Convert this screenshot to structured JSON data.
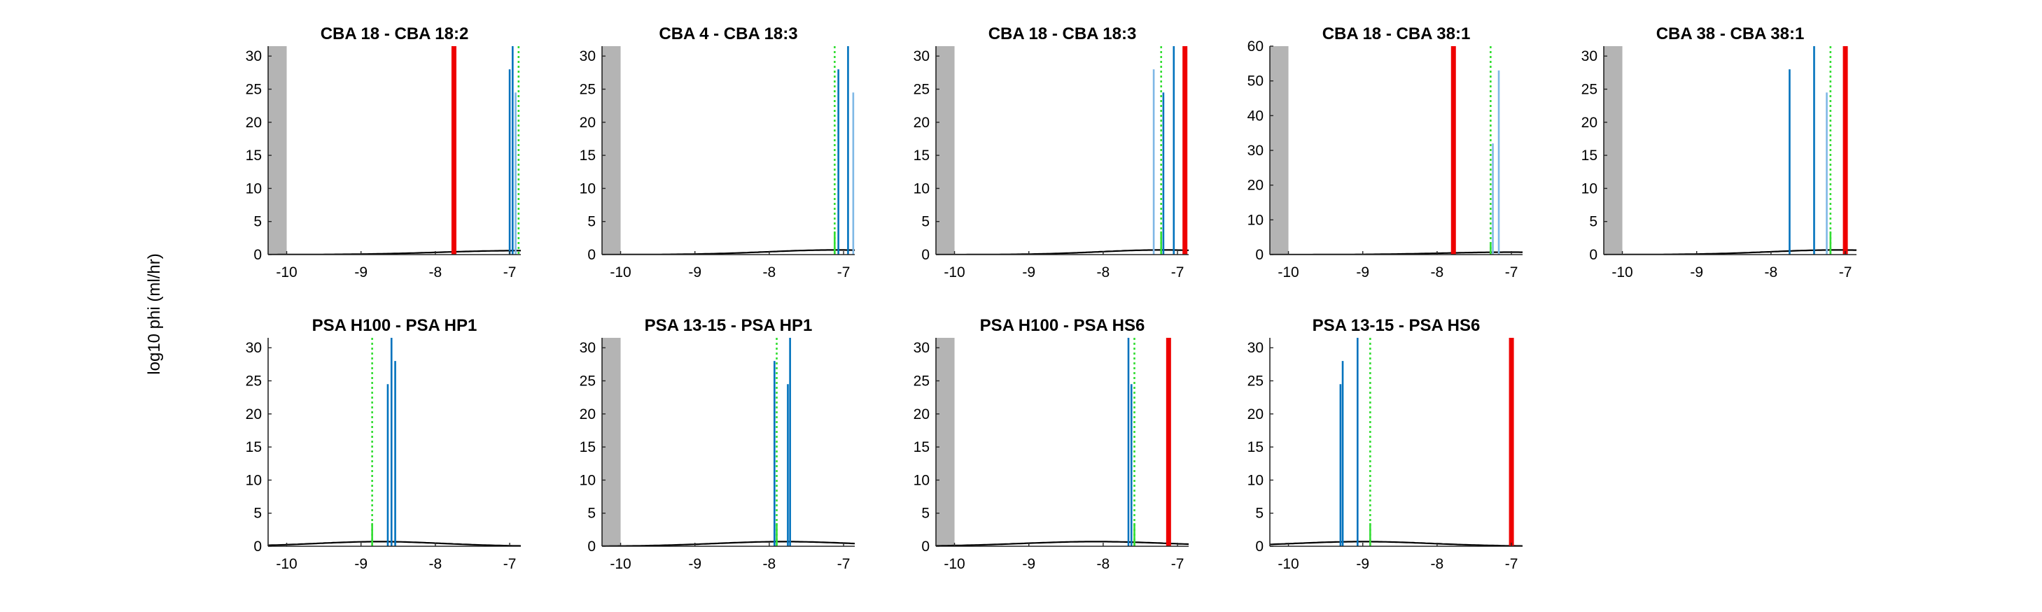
{
  "figure": {
    "ylabel": "log10 phi (ml/hr)"
  },
  "chart_data": [
    {
      "type": "bar",
      "title": "CBA 18 - CBA 18:2",
      "xlim": [
        -10.25,
        -6.85
      ],
      "ylim": [
        0,
        31.5
      ],
      "xticks": [
        -10,
        -9,
        -8,
        -7
      ],
      "xtick_labels": [
        "-10",
        "-9",
        "-8",
        "-7"
      ],
      "yticks": [
        0,
        5,
        10,
        15,
        20,
        25,
        30
      ],
      "ytick_labels": [
        "0",
        "5",
        "10",
        "15",
        "20",
        "25",
        "30"
      ],
      "shaded_region": [
        -10.25,
        -10.0
      ],
      "red_lines": [
        -7.75
      ],
      "green_dotted_lines": [
        -6.88
      ],
      "green_bars": [],
      "dark_blue_bars": [
        {
          "x": -7.0,
          "h": 28
        },
        {
          "x": -6.96,
          "h": 31.5
        }
      ],
      "light_blue_bars": [
        {
          "x": -6.92,
          "h": 24.5
        }
      ],
      "curve": {
        "peak_x": -6.85,
        "peak_y": 0.6,
        "width": 1.5
      }
    },
    {
      "type": "bar",
      "title": "CBA 4 - CBA 18:3",
      "xlim": [
        -10.25,
        -6.85
      ],
      "ylim": [
        0,
        31.5
      ],
      "xticks": [
        -10,
        -9,
        -8,
        -7
      ],
      "xtick_labels": [
        "-10",
        "-9",
        "-8",
        "-7"
      ],
      "yticks": [
        0,
        5,
        10,
        15,
        20,
        25,
        30
      ],
      "ytick_labels": [
        "0",
        "5",
        "10",
        "15",
        "20",
        "25",
        "30"
      ],
      "shaded_region": [
        -10.25,
        -10.0
      ],
      "red_lines": [],
      "green_dotted_lines": [
        -7.12
      ],
      "green_bars": [
        {
          "x": -7.12,
          "h": 3.5
        }
      ],
      "dark_blue_bars": [
        {
          "x": -7.07,
          "h": 28
        },
        {
          "x": -6.94,
          "h": 31.5
        }
      ],
      "light_blue_bars": [
        {
          "x": -6.87,
          "h": 24.5
        }
      ],
      "curve": {
        "peak_x": -7.1,
        "peak_y": 0.7,
        "width": 1.3
      }
    },
    {
      "type": "bar",
      "title": "CBA 18 - CBA 18:3",
      "xlim": [
        -10.25,
        -6.85
      ],
      "ylim": [
        0,
        31.5
      ],
      "xticks": [
        -10,
        -9,
        -8,
        -7
      ],
      "xtick_labels": [
        "-10",
        "-9",
        "-8",
        "-7"
      ],
      "yticks": [
        0,
        5,
        10,
        15,
        20,
        25,
        30
      ],
      "ytick_labels": [
        "0",
        "5",
        "10",
        "15",
        "20",
        "25",
        "30"
      ],
      "shaded_region": [
        -10.25,
        -10.0
      ],
      "red_lines": [
        -6.9
      ],
      "green_dotted_lines": [
        -7.22
      ],
      "green_bars": [
        {
          "x": -7.22,
          "h": 3.5
        }
      ],
      "dark_blue_bars": [
        {
          "x": -7.19,
          "h": 24.5
        },
        {
          "x": -7.05,
          "h": 31.5
        }
      ],
      "light_blue_bars": [
        {
          "x": -7.32,
          "h": 28
        }
      ],
      "curve": {
        "peak_x": -7.2,
        "peak_y": 0.7,
        "width": 1.2
      }
    },
    {
      "type": "bar",
      "title": "CBA 18 - CBA 38:1",
      "xlim": [
        -10.25,
        -6.85
      ],
      "ylim": [
        0,
        60
      ],
      "xticks": [
        -10,
        -9,
        -8,
        -7
      ],
      "xtick_labels": [
        "-10",
        "-9",
        "-8",
        "-7"
      ],
      "yticks": [
        0,
        10,
        20,
        30,
        40,
        50,
        60
      ],
      "ytick_labels": [
        "0",
        "10",
        "20",
        "30",
        "40",
        "50",
        "60"
      ],
      "shaded_region": [
        -10.25,
        -10.0
      ],
      "red_lines": [
        -7.78
      ],
      "green_dotted_lines": [
        -7.28
      ],
      "green_bars": [
        {
          "x": -7.28,
          "h": 3.5
        }
      ],
      "dark_blue_bars": [],
      "light_blue_bars": [
        {
          "x": -7.25,
          "h": 32
        },
        {
          "x": -7.17,
          "h": 53
        }
      ],
      "curve": {
        "peak_x": -7.0,
        "peak_y": 0.7,
        "width": 1.3
      }
    },
    {
      "type": "bar",
      "title": "CBA 38 - CBA 38:1",
      "xlim": [
        -10.25,
        -6.85
      ],
      "ylim": [
        0,
        31.5
      ],
      "xticks": [
        -10,
        -9,
        -8,
        -7
      ],
      "xtick_labels": [
        "-10",
        "-9",
        "-8",
        "-7"
      ],
      "yticks": [
        0,
        5,
        10,
        15,
        20,
        25,
        30
      ],
      "ytick_labels": [
        "0",
        "5",
        "10",
        "15",
        "20",
        "25",
        "30"
      ],
      "shaded_region": [
        -10.25,
        -10.0
      ],
      "red_lines": [
        -7.0
      ],
      "green_dotted_lines": [
        -7.2
      ],
      "green_bars": [
        {
          "x": -7.2,
          "h": 3.5
        }
      ],
      "dark_blue_bars": [
        {
          "x": -7.75,
          "h": 28
        },
        {
          "x": -7.42,
          "h": 31.5
        }
      ],
      "light_blue_bars": [
        {
          "x": -7.25,
          "h": 24.5
        }
      ],
      "curve": {
        "peak_x": -7.1,
        "peak_y": 0.7,
        "width": 1.3
      }
    },
    {
      "type": "bar",
      "title": "PSA H100 - PSA HP1",
      "xlim": [
        -10.25,
        -6.85
      ],
      "ylim": [
        0,
        31.5
      ],
      "xticks": [
        -10,
        -9,
        -8,
        -7
      ],
      "xtick_labels": [
        "-10",
        "-9",
        "-8",
        "-7"
      ],
      "yticks": [
        0,
        5,
        10,
        15,
        20,
        25,
        30
      ],
      "ytick_labels": [
        "0",
        "5",
        "10",
        "15",
        "20",
        "25",
        "30"
      ],
      "shaded_region": [],
      "red_lines": [],
      "green_dotted_lines": [
        -8.85
      ],
      "green_bars": [
        {
          "x": -8.85,
          "h": 3.5
        }
      ],
      "dark_blue_bars": [
        {
          "x": -8.64,
          "h": 24.5
        },
        {
          "x": -8.59,
          "h": 31.5
        },
        {
          "x": -8.54,
          "h": 28
        }
      ],
      "light_blue_bars": [],
      "curve": {
        "peak_x": -8.75,
        "peak_y": 0.7,
        "width": 1.2
      }
    },
    {
      "type": "bar",
      "title": "PSA 13-15 - PSA HP1",
      "xlim": [
        -10.25,
        -6.85
      ],
      "ylim": [
        0,
        31.5
      ],
      "xticks": [
        -10,
        -9,
        -8,
        -7
      ],
      "xtick_labels": [
        "-10",
        "-9",
        "-8",
        "-7"
      ],
      "yticks": [
        0,
        5,
        10,
        15,
        20,
        25,
        30
      ],
      "ytick_labels": [
        "0",
        "5",
        "10",
        "15",
        "20",
        "25",
        "30"
      ],
      "shaded_region": [
        -10.25,
        -10.0
      ],
      "red_lines": [],
      "green_dotted_lines": [
        -7.9
      ],
      "green_bars": [
        {
          "x": -7.9,
          "h": 3.5
        }
      ],
      "dark_blue_bars": [
        {
          "x": -7.93,
          "h": 28
        },
        {
          "x": -7.75,
          "h": 24.5
        },
        {
          "x": -7.72,
          "h": 31.5
        }
      ],
      "light_blue_bars": [],
      "curve": {
        "peak_x": -7.8,
        "peak_y": 0.7,
        "width": 1.3
      }
    },
    {
      "type": "bar",
      "title": "PSA H100 - PSA HS6",
      "xlim": [
        -10.25,
        -6.85
      ],
      "ylim": [
        0,
        31.5
      ],
      "xticks": [
        -10,
        -9,
        -8,
        -7
      ],
      "xtick_labels": [
        "-10",
        "-9",
        "-8",
        "-7"
      ],
      "yticks": [
        0,
        5,
        10,
        15,
        20,
        25,
        30
      ],
      "ytick_labels": [
        "0",
        "5",
        "10",
        "15",
        "20",
        "25",
        "30"
      ],
      "shaded_region": [
        -10.25,
        -10.0
      ],
      "red_lines": [
        -7.12
      ],
      "green_dotted_lines": [
        -7.58
      ],
      "green_bars": [
        {
          "x": -7.58,
          "h": 3.5
        }
      ],
      "dark_blue_bars": [
        {
          "x": -7.66,
          "h": 31.5
        },
        {
          "x": -7.62,
          "h": 24.5
        }
      ],
      "light_blue_bars": [],
      "curve": {
        "peak_x": -8.1,
        "peak_y": 0.7,
        "width": 1.4
      }
    },
    {
      "type": "bar",
      "title": "PSA 13-15 - PSA HS6",
      "xlim": [
        -10.25,
        -6.85
      ],
      "ylim": [
        0,
        31.5
      ],
      "xticks": [
        -10,
        -9,
        -8,
        -7
      ],
      "xtick_labels": [
        "-10",
        "-9",
        "-8",
        "-7"
      ],
      "yticks": [
        0,
        5,
        10,
        15,
        20,
        25,
        30
      ],
      "ytick_labels": [
        "0",
        "5",
        "10",
        "15",
        "20",
        "25",
        "30"
      ],
      "shaded_region": [],
      "red_lines": [
        -7.0
      ],
      "green_dotted_lines": [
        -8.9
      ],
      "green_bars": [
        {
          "x": -8.9,
          "h": 3.5
        }
      ],
      "dark_blue_bars": [
        {
          "x": -9.3,
          "h": 24.5
        },
        {
          "x": -9.27,
          "h": 28
        },
        {
          "x": -9.07,
          "h": 31.5
        }
      ],
      "light_blue_bars": [],
      "curve": {
        "peak_x": -9.0,
        "peak_y": 0.7,
        "width": 1.3
      }
    }
  ],
  "colors": {
    "red": "#ee0000",
    "green": "#33dd33",
    "dark_blue": "#0072bd",
    "light_blue": "#7fb8e6",
    "shade": "#b4b4b4",
    "curve": "#000000"
  }
}
